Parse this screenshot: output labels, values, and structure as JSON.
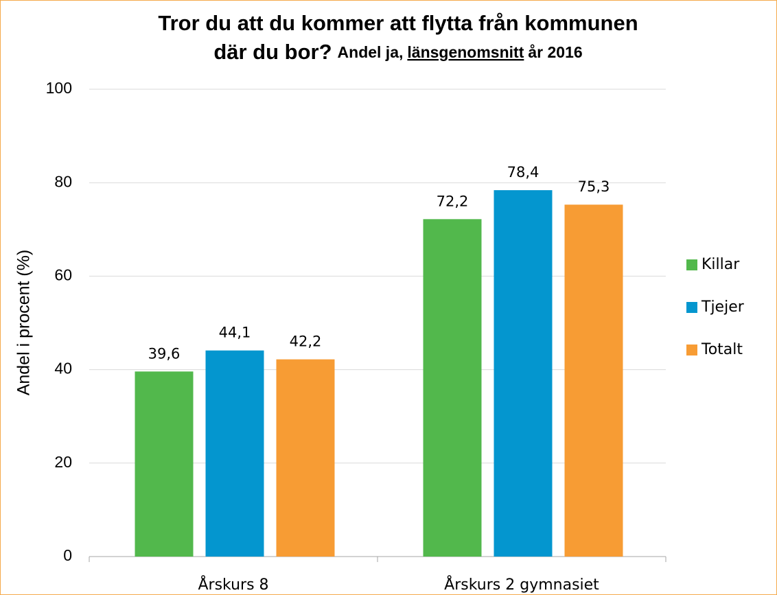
{
  "chart_data": {
    "type": "bar",
    "title": [
      "Tror du att du kommer att flytta från kommunen",
      "där du bor?"
    ],
    "subtitle": [
      "Andel ja,",
      "länsgenomsnitt",
      "år 2016"
    ],
    "y_label": "Andel i procent (%)",
    "categories": [
      "Årskurs 8",
      "Årskurs 2 gymnasiet"
    ],
    "series": [
      {
        "name": "Killar",
        "color": "#52b84c",
        "values": [
          39.6,
          72.2
        ],
        "value_labels": [
          "39,6",
          "72,2"
        ]
      },
      {
        "name": "Tjejer",
        "color": "#0496cf",
        "values": [
          44.1,
          78.4
        ],
        "value_labels": [
          "44,1",
          "78,4"
        ]
      },
      {
        "name": "Totalt",
        "color": "#f79c34",
        "values": [
          42.2,
          75.3
        ],
        "value_labels": [
          "42,2",
          "75,3"
        ]
      }
    ],
    "ylim": [
      0,
      100
    ],
    "yticks": [
      0,
      20,
      40,
      60,
      80,
      100
    ],
    "grid": true,
    "legend": "right"
  }
}
